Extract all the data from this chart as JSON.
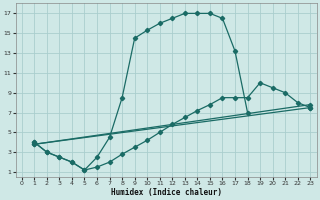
{
  "xlabel": "Humidex (Indice chaleur)",
  "bg_color": "#cfe8e6",
  "grid_color": "#aacece",
  "line_color": "#1a6b65",
  "xlim": [
    -0.5,
    23.5
  ],
  "ylim": [
    0.5,
    18
  ],
  "xticks": [
    0,
    1,
    2,
    3,
    4,
    5,
    6,
    7,
    8,
    9,
    10,
    11,
    12,
    13,
    14,
    15,
    16,
    17,
    18,
    19,
    20,
    21,
    22,
    23
  ],
  "yticks": [
    1,
    3,
    5,
    7,
    9,
    11,
    13,
    15,
    17
  ],
  "curve1_x": [
    1,
    2,
    3,
    4,
    5,
    6,
    7,
    8,
    9,
    10,
    11,
    12,
    13,
    14,
    15,
    16,
    17,
    18
  ],
  "curve1_y": [
    4,
    3,
    2.5,
    2,
    1.2,
    2.5,
    4.5,
    8.5,
    14.5,
    15.3,
    16,
    16.5,
    17,
    17,
    17,
    16.5,
    13.2,
    7.0
  ],
  "curve2_x": [
    1,
    2,
    3,
    4,
    5,
    6,
    7,
    8,
    9,
    10,
    11,
    12,
    13,
    14,
    15,
    16,
    17,
    18,
    19,
    20,
    21,
    22,
    23
  ],
  "curve2_y": [
    4,
    3,
    2.5,
    2,
    1.2,
    1.5,
    2.0,
    2.8,
    3.5,
    4.2,
    5.0,
    5.8,
    6.5,
    7.2,
    7.8,
    8.5,
    8.5,
    8.5,
    10.0,
    9.5,
    9.0,
    8.0,
    7.5
  ],
  "line1_x": [
    1,
    23
  ],
  "line1_y": [
    3.8,
    7.5
  ],
  "line2_x": [
    1,
    23
  ],
  "line2_y": [
    3.8,
    7.8
  ]
}
